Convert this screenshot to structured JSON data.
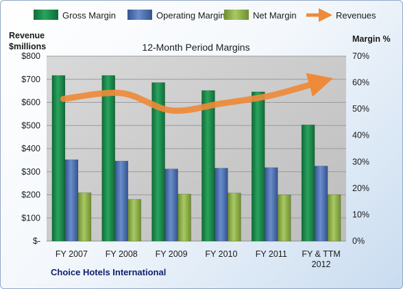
{
  "header": {
    "left_axis_title_line1": "Revenue",
    "left_axis_title_line2": "$millions",
    "right_axis_title": "Margin %",
    "company": "Choice Hotels International"
  },
  "colors": {
    "gross": "#1e8a4c",
    "operating": "#4b6fb0",
    "net": "#8fb14a",
    "revenue": "#ee8a3a",
    "plot_bg": "#cfcfcf"
  },
  "chart_data": {
    "type": "bar",
    "title": "12-Month Period Margins",
    "categories": [
      "FY 2007",
      "FY 2008",
      "FY 2009",
      "FY 2010",
      "FY 2011",
      "FY & TTM 2012"
    ],
    "series": [
      {
        "name": "Gross Margin",
        "axis": "right",
        "values": [
          62.7,
          62.7,
          60.0,
          57.0,
          56.5,
          44.0
        ]
      },
      {
        "name": "Operating Margin",
        "axis": "right",
        "values": [
          30.8,
          30.3,
          27.3,
          27.6,
          27.8,
          28.4
        ]
      },
      {
        "name": "Net Margin",
        "axis": "right",
        "values": [
          18.3,
          15.8,
          17.8,
          18.2,
          17.5,
          17.6
        ]
      },
      {
        "name": "Revenues",
        "type": "line",
        "axis": "left",
        "values": [
          615,
          640,
          565,
          595,
          630,
          690
        ]
      }
    ],
    "y_left": {
      "label": "Revenue $millions",
      "min": 0,
      "max": 800,
      "step": 100,
      "ticks": [
        "$-",
        "$100",
        "$200",
        "$300",
        "$400",
        "$500",
        "$600",
        "$700",
        "$800"
      ]
    },
    "y_right": {
      "label": "Margin %",
      "min": 0,
      "max": 70,
      "step": 10,
      "ticks": [
        "0%",
        "10%",
        "20%",
        "30%",
        "40%",
        "50%",
        "60%",
        "70%"
      ]
    },
    "legend_position": "top",
    "grid": true
  }
}
